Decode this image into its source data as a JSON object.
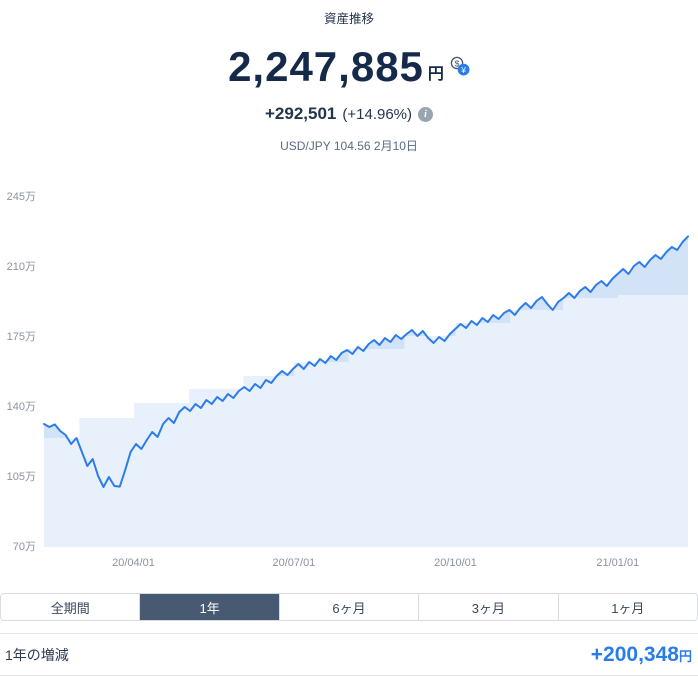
{
  "header": {
    "title": "資産推移",
    "amount": {
      "value": "2,247,885",
      "unit": "円"
    },
    "change": {
      "value": "+292,501",
      "percent": "(+14.96%)"
    },
    "fx": "USD/JPY 104.56 2月10日"
  },
  "icons": {
    "currency_dollar": "$",
    "currency_yen": "¥",
    "info": "i"
  },
  "colors": {
    "accent_blue": "#2a7de9",
    "navy": "#15294b",
    "line_blue": "#2c7cec",
    "area_fill": "#d2e3f8",
    "principal_fill": "#e8f0fb",
    "tab_selected_bg": "#485a72",
    "axis_gray": "#8b93a1"
  },
  "tabs": [
    {
      "label": "全期間",
      "selected": false
    },
    {
      "label": "1年",
      "selected": true
    },
    {
      "label": "6ヶ月",
      "selected": false
    },
    {
      "label": "3ヶ月",
      "selected": false
    },
    {
      "label": "1ヶ月",
      "selected": false
    }
  ],
  "footer": {
    "label": "1年の増減",
    "value": "+200,348",
    "unit": "円"
  },
  "chart_data": {
    "type": "area",
    "title": "資産推移",
    "ylim": [
      70,
      245
    ],
    "y_unit": "万",
    "y_ticks": [
      245,
      210,
      175,
      140,
      105,
      70
    ],
    "grid": false,
    "legend": false,
    "x_labels": [
      {
        "label": "20/04/01",
        "t": 0.139
      },
      {
        "label": "20/07/01",
        "t": 0.388
      },
      {
        "label": "20/10/01",
        "t": 0.639
      },
      {
        "label": "21/01/01",
        "t": 0.891
      }
    ],
    "series": [
      {
        "name": "total_assets_line",
        "style": "line+area",
        "values": [
          131,
          129.5,
          130.8,
          127.5,
          125.5,
          121,
          124,
          117,
          110,
          113.5,
          105,
          99.5,
          104.5,
          100,
          99.7,
          108,
          117,
          121,
          118.5,
          123,
          127,
          124.5,
          131,
          134,
          131.5,
          137,
          139.5,
          137.5,
          141,
          139,
          143,
          141,
          144.5,
          142.5,
          146,
          144,
          147.5,
          149.5,
          147.5,
          151,
          149,
          153,
          151.5,
          155,
          157.5,
          155.5,
          158.5,
          161,
          158.5,
          162,
          160,
          163.5,
          161.5,
          165,
          163,
          166.5,
          168,
          166,
          169.5,
          167.5,
          171,
          173,
          170.5,
          174,
          172,
          175.5,
          173.5,
          176,
          178,
          175,
          177.5,
          174,
          171.5,
          174.5,
          172.5,
          176,
          178.5,
          181,
          179,
          182.5,
          180.5,
          184,
          182,
          185.5,
          183.5,
          186.5,
          188,
          185.5,
          189,
          191.5,
          189,
          192.5,
          194.5,
          191,
          188,
          192,
          194,
          196.5,
          194,
          197.5,
          199.5,
          197,
          200.5,
          202.5,
          200,
          203.5,
          206,
          208.5,
          206,
          210,
          212,
          209.5,
          213,
          215.5,
          213.5,
          217,
          219.5,
          218,
          222,
          224.8
        ]
      },
      {
        "name": "principal_step_area",
        "style": "step-area",
        "points": [
          {
            "t": 0,
            "v": 124
          },
          {
            "t": 0.055,
            "v": 134
          },
          {
            "t": 0.14,
            "v": 141.5
          },
          {
            "t": 0.225,
            "v": 148.5
          },
          {
            "t": 0.31,
            "v": 155
          },
          {
            "t": 0.388,
            "v": 162
          },
          {
            "t": 0.473,
            "v": 168.5
          },
          {
            "t": 0.56,
            "v": 175
          },
          {
            "t": 0.639,
            "v": 181.5
          },
          {
            "t": 0.724,
            "v": 188
          },
          {
            "t": 0.806,
            "v": 194
          },
          {
            "t": 0.891,
            "v": 195.5
          }
        ]
      }
    ]
  }
}
